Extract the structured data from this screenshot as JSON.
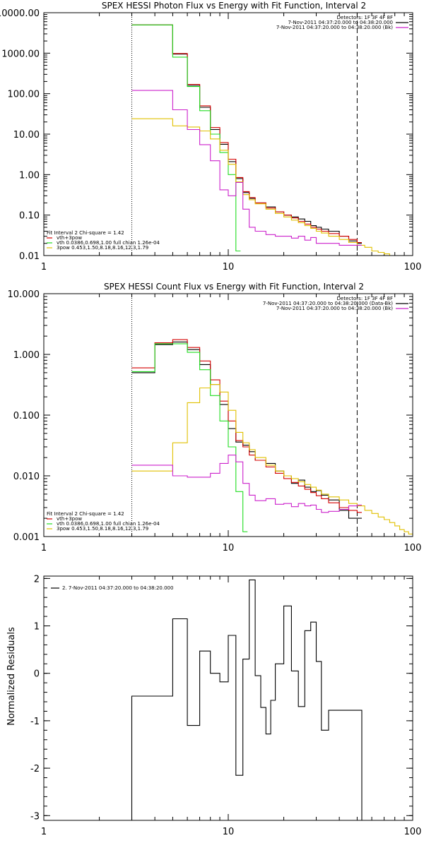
{
  "chart_data": [
    {
      "type": "line",
      "title": "SPEX HESSI Photon Flux vs Energy with Fit Function, Interval 2",
      "xscale": "log",
      "yscale": "log",
      "xlim": [
        1,
        100
      ],
      "ylim": [
        0.01,
        10000
      ],
      "xticks": [
        "1",
        "10",
        "100"
      ],
      "yticks": [
        {
          "v": 0.01,
          "label": "0.01"
        },
        {
          "v": 0.1,
          "label": "0.10"
        },
        {
          "v": 1,
          "label": "1.00"
        },
        {
          "v": 10,
          "label": "10.00"
        },
        {
          "v": 100,
          "label": "100.00"
        },
        {
          "v": 1000,
          "label": "1000.00"
        },
        {
          "v": 10000,
          "label": "10000.00"
        }
      ],
      "vlines": [
        {
          "x": 3,
          "style": "dotted"
        },
        {
          "x": 50,
          "style": "dashed"
        }
      ],
      "legend_top": [
        "Detectors: 1F 3F 4F 8F",
        "7-Nov-2011 04:37:20.000 to 04:38:20.000",
        "7-Nov-2011 04:37:20.000 to 04:38:20.000 (Bk)"
      ],
      "legend_bottom": [
        "Fit Interval 2   Chi-square = 1.42",
        "vth+3pow",
        "vth 0.0386,0.698,1.00  full chian 1.26e-04",
        "3pow 0.453,1.50,8.18,8.16,12.3,1.79"
      ],
      "series": [
        {
          "name": "7-Nov-2011 04:37:20.000 to 04:38:20.000",
          "color": "#000000",
          "x": [
            3,
            4,
            5,
            6,
            7,
            8,
            9,
            10,
            11,
            12,
            13,
            14,
            16,
            18,
            20,
            22,
            24,
            26,
            28,
            30,
            32,
            35,
            40,
            45,
            50
          ],
          "y": [
            5000,
            5000,
            950,
            160,
            46,
            13,
            5.6,
            2.1,
            0.8,
            0.36,
            0.26,
            0.2,
            0.16,
            0.12,
            0.1,
            0.09,
            0.08,
            0.07,
            0.055,
            0.05,
            0.045,
            0.04,
            0.03,
            0.023,
            0.02
          ]
        },
        {
          "name": "vth+3pow",
          "color": "#d40000",
          "x": [
            3,
            4,
            5,
            6,
            7,
            8,
            9,
            10,
            11,
            12,
            13,
            14,
            16,
            18,
            20,
            22,
            24,
            26,
            28,
            30,
            32,
            35,
            40,
            45,
            50
          ],
          "y": [
            5000,
            5000,
            980,
            170,
            50,
            14.5,
            6.2,
            2.4,
            0.85,
            0.38,
            0.27,
            0.2,
            0.15,
            0.12,
            0.1,
            0.085,
            0.07,
            0.06,
            0.05,
            0.045,
            0.04,
            0.035,
            0.03,
            0.025,
            0.021
          ]
        },
        {
          "name": "vth",
          "color": "#22dd22",
          "x": [
            3,
            4,
            5,
            6,
            7,
            8,
            9,
            10,
            11
          ],
          "y": [
            5000,
            5000,
            800,
            150,
            38,
            10,
            3.5,
            1.0,
            0.013
          ]
        },
        {
          "name": "3pow",
          "color": "#e0c000",
          "x": [
            3,
            4,
            5,
            6,
            7,
            8,
            9,
            10,
            11,
            12,
            13,
            14,
            16,
            18,
            20,
            22,
            24,
            26,
            28,
            30,
            32,
            35,
            40,
            45,
            50,
            55,
            60,
            65,
            70,
            75
          ],
          "y": [
            24,
            24,
            16,
            15,
            12,
            7.6,
            4,
            1.8,
            0.66,
            0.32,
            0.24,
            0.19,
            0.14,
            0.11,
            0.09,
            0.075,
            0.065,
            0.055,
            0.047,
            0.04,
            0.036,
            0.03,
            0.025,
            0.021,
            0.018,
            0.016,
            0.013,
            0.012,
            0.011,
            0.01
          ]
        },
        {
          "name": "7-Nov-2011 04:37:20.000 to 04:38:20.000 (Bk)",
          "color": "#cc22cc",
          "x": [
            3,
            4,
            5,
            6,
            7,
            8,
            9,
            10,
            11,
            12,
            13,
            14,
            16,
            18,
            20,
            22,
            24,
            26,
            28,
            30,
            32,
            35,
            40,
            45,
            50
          ],
          "y": [
            120,
            120,
            40,
            13,
            5.5,
            2.2,
            0.42,
            0.3,
            0.64,
            0.14,
            0.05,
            0.04,
            0.033,
            0.03,
            0.03,
            0.027,
            0.03,
            0.024,
            0.028,
            0.02,
            0.02,
            0.02,
            0.018,
            0.018,
            0.018
          ]
        }
      ]
    },
    {
      "type": "line",
      "title": "SPEX HESSI Count Flux vs Energy with Fit Function, Interval 2",
      "xscale": "log",
      "yscale": "log",
      "xlim": [
        1,
        100
      ],
      "ylim": [
        0.001,
        10
      ],
      "xticks": [
        "1",
        "10",
        "100"
      ],
      "yticks": [
        {
          "v": 0.001,
          "label": "0.001"
        },
        {
          "v": 0.01,
          "label": "0.010"
        },
        {
          "v": 0.1,
          "label": "0.100"
        },
        {
          "v": 1,
          "label": "1.000"
        },
        {
          "v": 10,
          "label": "10.000"
        }
      ],
      "vlines": [
        {
          "x": 3,
          "style": "dotted"
        },
        {
          "x": 50,
          "style": "dashed"
        }
      ],
      "legend_top": [
        "Detectors: 1F 3F 4F 8F",
        "7-Nov-2011 04:37:20.000 to 04:38:20.000 (Data-Bk)",
        "7-Nov-2011 04:37:20.000 to 04:38:20.000 (Bk)"
      ],
      "legend_bottom": [
        "Fit Interval 2   Chi-square = 1.42",
        "vth+3pow",
        "vth 0.0386,0.698,1.00  full chian 1.26e-04",
        "3pow 0.453,1.50,8.18,8.16,12.3,1.79"
      ],
      "series": [
        {
          "name": "7-Nov-2011 04:37:20.000 to 04:38:20.000 (Data-Bk)",
          "color": "#000000",
          "x": [
            3,
            4,
            5,
            6,
            7,
            8,
            9,
            10,
            11,
            12,
            13,
            14,
            16,
            18,
            20,
            22,
            24,
            26,
            28,
            30,
            32,
            35,
            40,
            45,
            50
          ],
          "y": [
            0.5,
            1.45,
            1.6,
            1.2,
            0.68,
            0.32,
            0.15,
            0.06,
            0.036,
            0.032,
            0.025,
            0.018,
            0.016,
            0.012,
            0.01,
            0.0075,
            0.0085,
            0.0065,
            0.0055,
            0.0057,
            0.0048,
            0.004,
            0.0027,
            0.002,
            0.002
          ]
        },
        {
          "name": "vth+3pow",
          "color": "#d40000",
          "x": [
            3,
            4,
            5,
            6,
            7,
            8,
            9,
            10,
            11,
            12,
            13,
            14,
            16,
            18,
            20,
            22,
            24,
            26,
            28,
            30,
            32,
            35,
            40,
            45,
            50
          ],
          "y": [
            0.6,
            1.55,
            1.75,
            1.3,
            0.78,
            0.38,
            0.17,
            0.08,
            0.038,
            0.03,
            0.022,
            0.018,
            0.014,
            0.011,
            0.009,
            0.0078,
            0.0068,
            0.006,
            0.0053,
            0.0047,
            0.0042,
            0.0036,
            0.003,
            0.0027,
            0.0025
          ]
        },
        {
          "name": "vth",
          "color": "#22dd22",
          "x": [
            3,
            4,
            5,
            6,
            7,
            8,
            9,
            10,
            11,
            12
          ],
          "y": [
            0.52,
            1.5,
            1.5,
            1.08,
            0.56,
            0.21,
            0.08,
            0.03,
            0.0055,
            0.0012
          ]
        },
        {
          "name": "3pow",
          "color": "#e0c000",
          "x": [
            3,
            4,
            5,
            6,
            7,
            8,
            9,
            10,
            11,
            12,
            13,
            14,
            16,
            18,
            20,
            22,
            24,
            26,
            28,
            30,
            32,
            35,
            40,
            45,
            50,
            55,
            60,
            65,
            70,
            75,
            80,
            85,
            90,
            95
          ],
          "y": [
            0.012,
            0.012,
            0.035,
            0.16,
            0.28,
            0.32,
            0.24,
            0.12,
            0.052,
            0.035,
            0.027,
            0.02,
            0.015,
            0.012,
            0.01,
            0.009,
            0.008,
            0.0072,
            0.0065,
            0.0058,
            0.005,
            0.0045,
            0.004,
            0.0035,
            0.0032,
            0.0027,
            0.0024,
            0.0021,
            0.0019,
            0.0017,
            0.0015,
            0.0013,
            0.0012,
            0.0011
          ]
        },
        {
          "name": "7-Nov-2011 04:37:20.000 to 04:38:20.000 (Bk)",
          "color": "#cc22cc",
          "x": [
            3,
            4,
            5,
            6,
            7,
            8,
            9,
            10,
            11,
            12,
            13,
            14,
            16,
            18,
            20,
            22,
            24,
            26,
            28,
            30,
            32,
            35,
            40,
            45,
            50
          ],
          "y": [
            0.015,
            0.015,
            0.01,
            0.0095,
            0.0095,
            0.011,
            0.016,
            0.022,
            0.017,
            0.0075,
            0.0048,
            0.0039,
            0.0042,
            0.0034,
            0.0035,
            0.0031,
            0.0035,
            0.0032,
            0.0033,
            0.0028,
            0.0025,
            0.0026,
            0.0028,
            0.0032,
            0.0033
          ]
        }
      ]
    },
    {
      "type": "line",
      "title": "",
      "ylabel": "Normalized Residuals",
      "xscale": "log",
      "yscale": "linear",
      "xlim": [
        1,
        100
      ],
      "ylim": [
        -3.1,
        2.05
      ],
      "xticks": [
        "1",
        "10",
        "100"
      ],
      "yticks": [
        {
          "v": -3,
          "label": "-3"
        },
        {
          "v": -2,
          "label": "-2"
        },
        {
          "v": -1,
          "label": "-1"
        },
        {
          "v": 0,
          "label": "0"
        },
        {
          "v": 1,
          "label": "1"
        },
        {
          "v": 2,
          "label": "2"
        }
      ],
      "vlines": [],
      "legend_top": [
        "2.  7-Nov-2011 04:37:20.000 to 04:38:20.000"
      ],
      "legend_bottom": [],
      "series": [
        {
          "name": "2.  7-Nov-2011 04:37:20.000 to 04:38:20.000",
          "color": "#000000",
          "x": [
            3,
            4,
            5,
            6,
            7,
            7.5,
            8,
            9,
            10,
            11,
            12,
            13,
            14,
            15,
            16,
            17,
            18,
            20,
            22,
            24,
            26,
            28,
            30,
            32,
            35,
            40,
            45,
            50
          ],
          "y": [
            -0.48,
            -0.48,
            1.15,
            -1.1,
            0.47,
            0.47,
            0.0,
            -0.18,
            0.8,
            -2.15,
            0.3,
            1.97,
            -0.05,
            -0.72,
            -1.28,
            -0.57,
            0.2,
            1.42,
            0.05,
            -0.7,
            0.9,
            1.08,
            0.25,
            -1.2,
            -0.78,
            -0.78,
            -0.78,
            -0.78
          ]
        }
      ]
    }
  ]
}
